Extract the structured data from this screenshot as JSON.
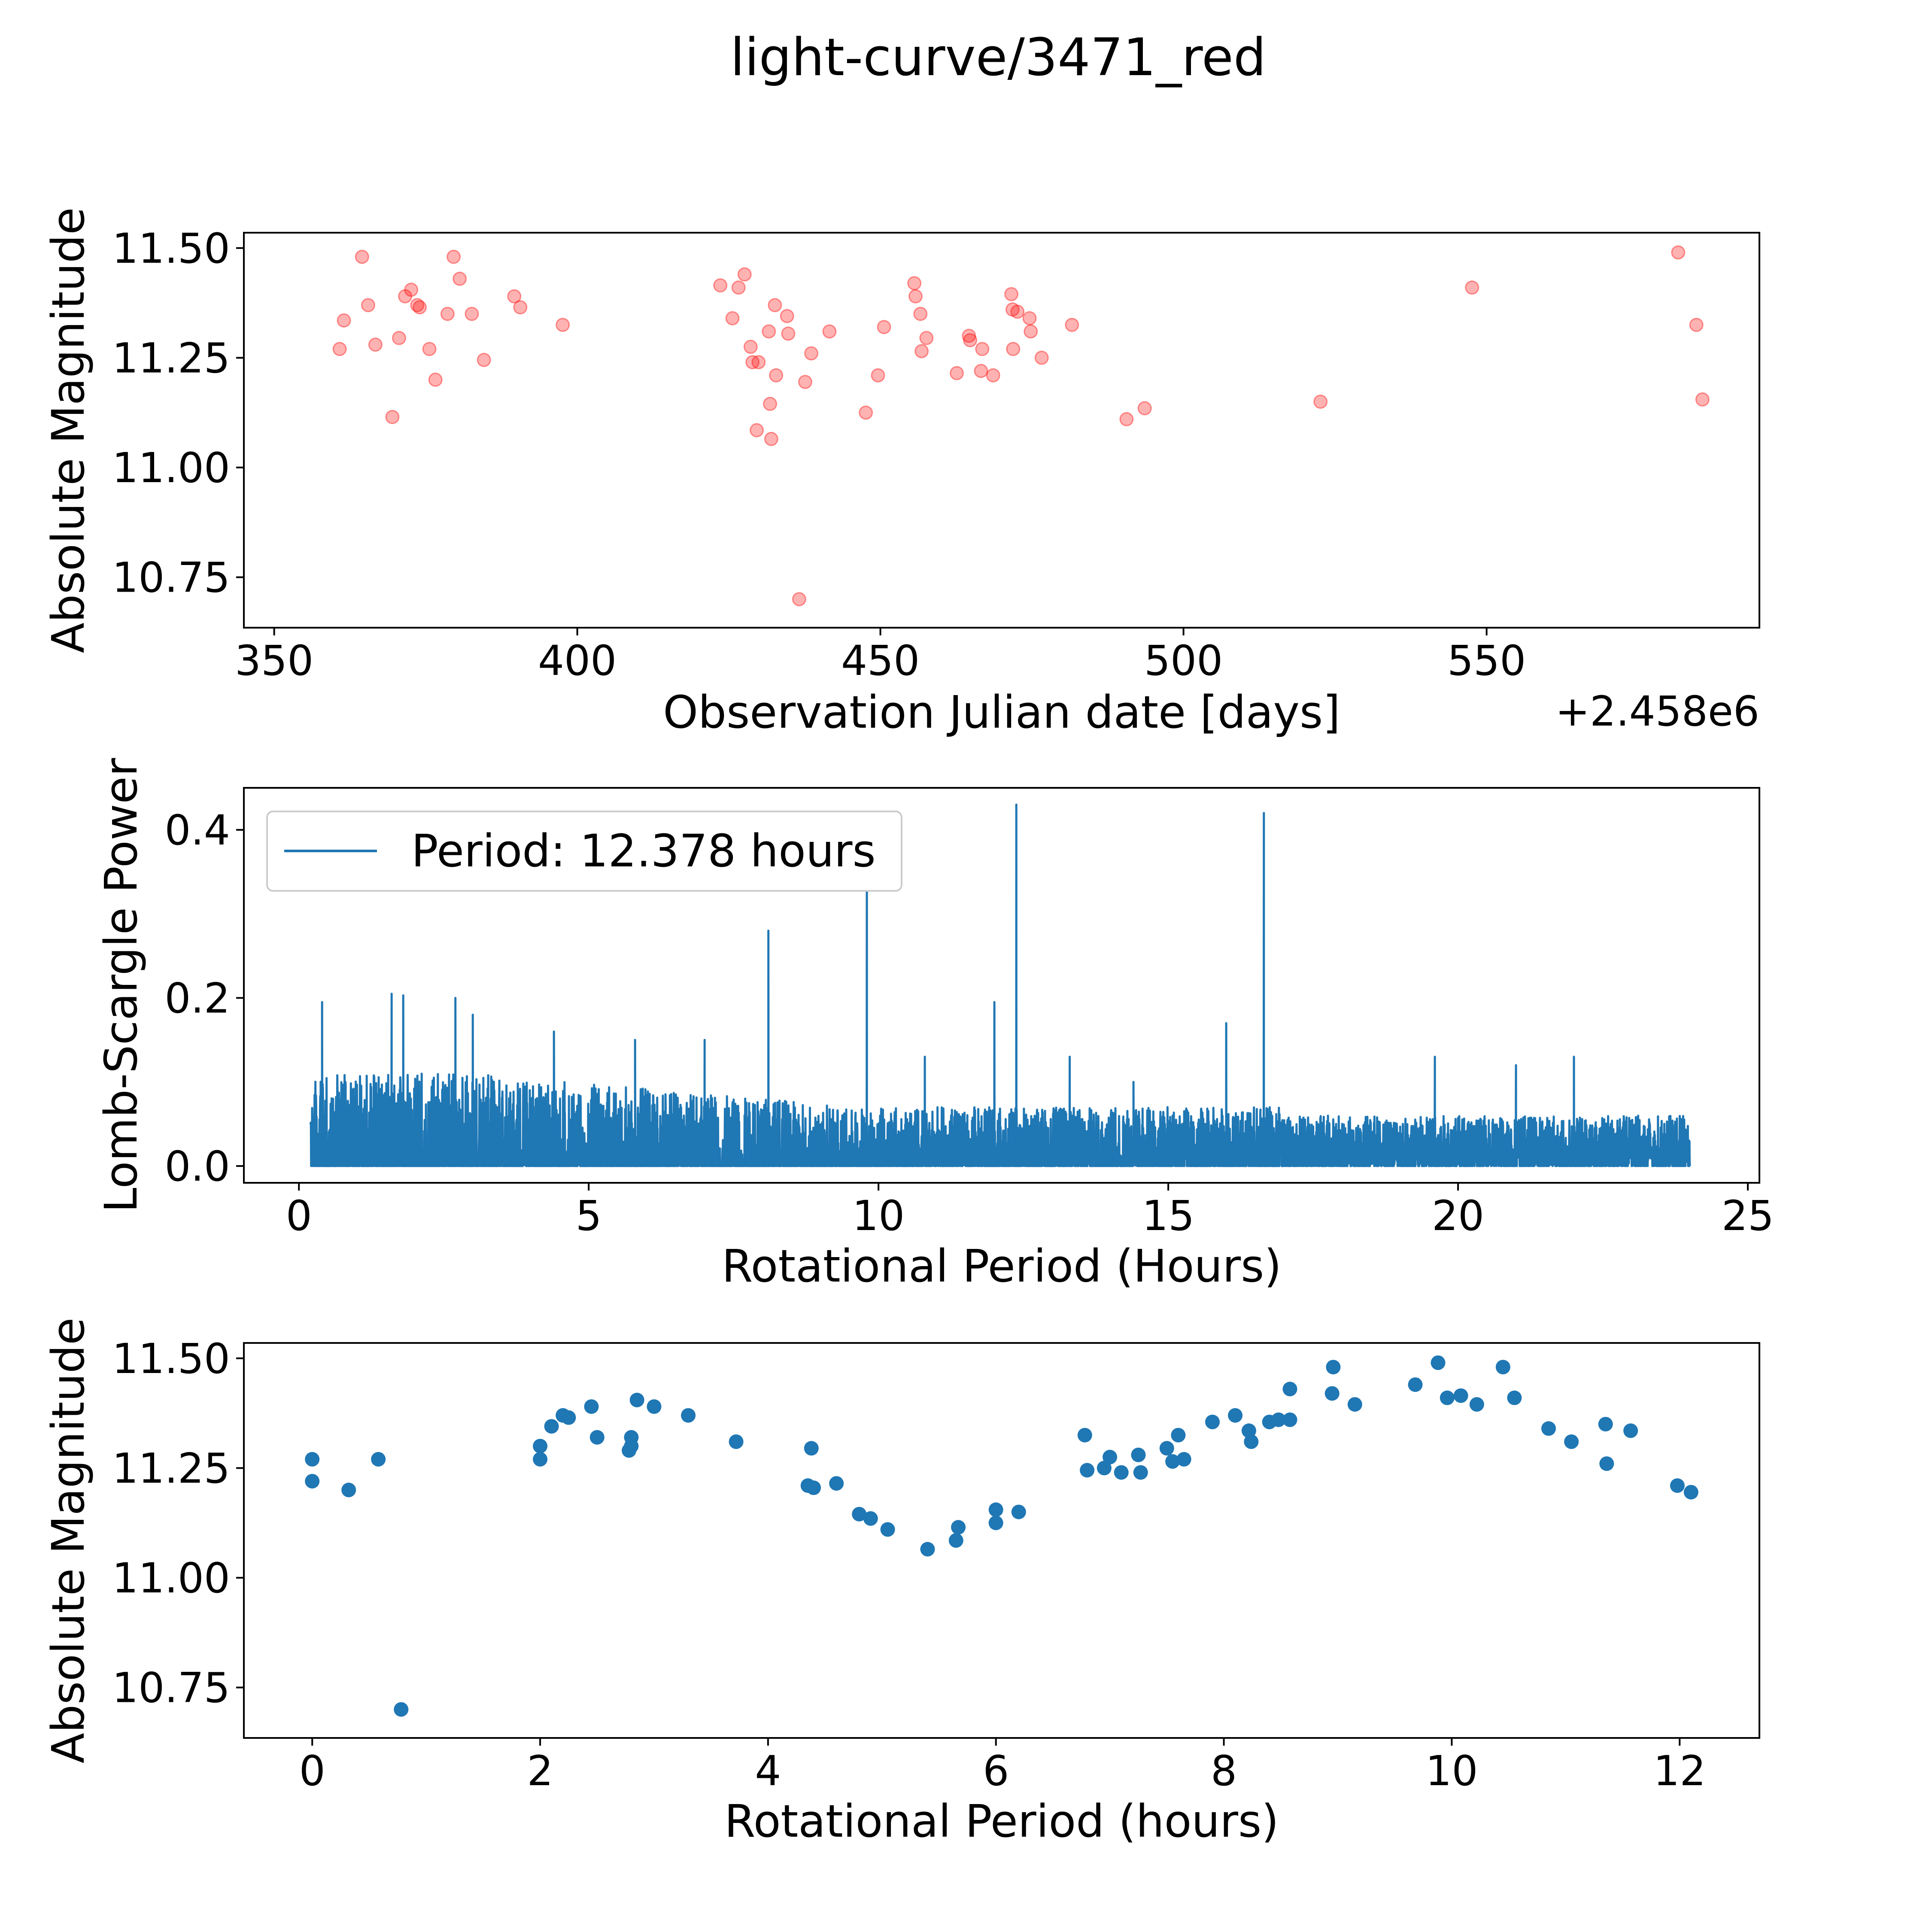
{
  "figure": {
    "title": "light-curve/3471_red"
  },
  "chart_data": [
    {
      "type": "scatter",
      "name": "raw-light-curve",
      "xlabel": "Observation Julian date [days]",
      "ylabel": "Absolute Magnitude",
      "offset_label": "+2.458e6",
      "xlim": [
        345,
        595
      ],
      "ylim": [
        10.635,
        11.535
      ],
      "x_ticks": [
        350,
        400,
        450,
        500,
        550
      ],
      "x_tick_labels": [
        "350",
        "400",
        "450",
        "500",
        "550"
      ],
      "y_ticks": [
        10.75,
        11.0,
        11.25,
        11.5
      ],
      "y_tick_labels": [
        "10.75",
        "11.00",
        "11.25",
        "11.50"
      ],
      "grid": false,
      "color": "#ff0000",
      "alpha": 0.3,
      "points": [
        [
          360.8,
          11.27
        ],
        [
          361.5,
          11.335
        ],
        [
          364.5,
          11.48
        ],
        [
          365.5,
          11.37
        ],
        [
          366.7,
          11.28
        ],
        [
          369.5,
          11.115
        ],
        [
          370.6,
          11.295
        ],
        [
          371.6,
          11.39
        ],
        [
          372.6,
          11.405
        ],
        [
          373.6,
          11.37
        ],
        [
          374.0,
          11.365
        ],
        [
          375.6,
          11.27
        ],
        [
          376.6,
          11.2
        ],
        [
          378.6,
          11.35
        ],
        [
          379.6,
          11.48
        ],
        [
          380.6,
          11.43
        ],
        [
          382.6,
          11.35
        ],
        [
          384.6,
          11.245
        ],
        [
          389.6,
          11.39
        ],
        [
          390.6,
          11.365
        ],
        [
          397.6,
          11.325
        ],
        [
          423.6,
          11.415
        ],
        [
          425.6,
          11.34
        ],
        [
          426.6,
          11.41
        ],
        [
          427.6,
          11.44
        ],
        [
          428.6,
          11.275
        ],
        [
          428.9,
          11.24
        ],
        [
          429.6,
          11.085
        ],
        [
          429.9,
          11.24
        ],
        [
          431.6,
          11.31
        ],
        [
          431.8,
          11.145
        ],
        [
          432.0,
          11.065
        ],
        [
          432.6,
          11.37
        ],
        [
          432.8,
          11.21
        ],
        [
          434.6,
          11.345
        ],
        [
          434.8,
          11.305
        ],
        [
          436.6,
          10.7
        ],
        [
          437.6,
          11.195
        ],
        [
          438.6,
          11.26
        ],
        [
          441.6,
          11.31
        ],
        [
          447.6,
          11.125
        ],
        [
          449.6,
          11.21
        ],
        [
          450.6,
          11.32
        ],
        [
          455.6,
          11.42
        ],
        [
          455.8,
          11.39
        ],
        [
          456.6,
          11.35
        ],
        [
          456.8,
          11.265
        ],
        [
          457.6,
          11.295
        ],
        [
          462.6,
          11.215
        ],
        [
          464.6,
          11.3
        ],
        [
          464.8,
          11.29
        ],
        [
          466.6,
          11.22
        ],
        [
          466.8,
          11.27
        ],
        [
          468.6,
          11.21
        ],
        [
          471.6,
          11.395
        ],
        [
          471.8,
          11.36
        ],
        [
          471.9,
          11.27
        ],
        [
          472.6,
          11.355
        ],
        [
          474.6,
          11.34
        ],
        [
          474.8,
          11.31
        ],
        [
          476.6,
          11.25
        ],
        [
          481.6,
          11.325
        ],
        [
          490.6,
          11.11
        ],
        [
          493.6,
          11.135
        ],
        [
          522.6,
          11.15
        ],
        [
          547.6,
          11.41
        ],
        [
          581.6,
          11.49
        ],
        [
          584.6,
          11.325
        ],
        [
          585.6,
          11.155
        ]
      ]
    },
    {
      "type": "line",
      "name": "lomb-scargle-periodogram",
      "xlabel": "Rotational Period (Hours)",
      "ylabel": "Lomb-Scargle Power",
      "xlim": [
        -0.95,
        25.2
      ],
      "ylim": [
        -0.02,
        0.45
      ],
      "x_ticks": [
        0,
        5,
        10,
        15,
        20,
        25
      ],
      "x_tick_labels": [
        "0",
        "5",
        "10",
        "15",
        "20",
        "25"
      ],
      "y_ticks": [
        0.0,
        0.2,
        0.4
      ],
      "y_tick_labels": [
        "0.0",
        "0.2",
        "0.4"
      ],
      "grid": false,
      "legend": {
        "location": "top-left",
        "label": "Period: 12.378 hours"
      },
      "color": "#1f77b4",
      "x_range": [
        0.2,
        24.0
      ],
      "peaks": [
        [
          0.4,
          0.195
        ],
        [
          1.6,
          0.205
        ],
        [
          1.8,
          0.203
        ],
        [
          2.7,
          0.2
        ],
        [
          3.0,
          0.18
        ],
        [
          8.1,
          0.28
        ],
        [
          9.8,
          0.37
        ],
        [
          12.378,
          0.43
        ],
        [
          16.65,
          0.42
        ],
        [
          12.0,
          0.195
        ],
        [
          16.0,
          0.17
        ],
        [
          13.3,
          0.13
        ],
        [
          19.6,
          0.13
        ],
        [
          21.0,
          0.12
        ],
        [
          22.0,
          0.13
        ],
        [
          7.0,
          0.15
        ],
        [
          10.8,
          0.13
        ],
        [
          5.8,
          0.15
        ],
        [
          4.4,
          0.16
        ],
        [
          14.4,
          0.1
        ]
      ]
    },
    {
      "type": "scatter",
      "name": "phase-folded-light-curve",
      "xlabel": "Rotational Period (hours)",
      "ylabel": "Absolute Magnitude",
      "xlim": [
        -0.6,
        12.7
      ],
      "ylim": [
        10.635,
        11.535
      ],
      "x_ticks": [
        0,
        2,
        4,
        6,
        8,
        10,
        12
      ],
      "x_tick_labels": [
        "0",
        "2",
        "4",
        "6",
        "8",
        "10",
        "12"
      ],
      "y_ticks": [
        10.75,
        11.0,
        11.25,
        11.5
      ],
      "y_tick_labels": [
        "10.75",
        "11.00",
        "11.25",
        "11.50"
      ],
      "grid": false,
      "color": "#1f77b4",
      "points": [
        [
          0.0,
          11.27
        ],
        [
          0.0,
          11.22
        ],
        [
          0.32,
          11.2
        ],
        [
          0.58,
          11.27
        ],
        [
          0.78,
          10.7
        ],
        [
          2.0,
          11.3
        ],
        [
          2.0,
          11.27
        ],
        [
          2.1,
          11.345
        ],
        [
          2.2,
          11.37
        ],
        [
          2.25,
          11.365
        ],
        [
          2.45,
          11.39
        ],
        [
          2.5,
          11.32
        ],
        [
          2.78,
          11.29
        ],
        [
          2.8,
          11.3
        ],
        [
          2.8,
          11.32
        ],
        [
          2.85,
          11.405
        ],
        [
          3.0,
          11.39
        ],
        [
          3.3,
          11.37
        ],
        [
          3.72,
          11.31
        ],
        [
          4.35,
          11.21
        ],
        [
          4.38,
          11.295
        ],
        [
          4.4,
          11.205
        ],
        [
          4.6,
          11.215
        ],
        [
          4.8,
          11.145
        ],
        [
          4.9,
          11.135
        ],
        [
          5.05,
          11.11
        ],
        [
          5.4,
          11.065
        ],
        [
          5.65,
          11.085
        ],
        [
          5.67,
          11.115
        ],
        [
          6.0,
          11.125
        ],
        [
          6.0,
          11.155
        ],
        [
          6.2,
          11.15
        ],
        [
          6.78,
          11.325
        ],
        [
          6.8,
          11.245
        ],
        [
          6.95,
          11.25
        ],
        [
          7.0,
          11.275
        ],
        [
          7.1,
          11.24
        ],
        [
          7.25,
          11.28
        ],
        [
          7.27,
          11.24
        ],
        [
          7.5,
          11.295
        ],
        [
          7.55,
          11.265
        ],
        [
          7.6,
          11.325
        ],
        [
          7.65,
          11.27
        ],
        [
          7.9,
          11.355
        ],
        [
          8.1,
          11.37
        ],
        [
          8.22,
          11.335
        ],
        [
          8.24,
          11.31
        ],
        [
          8.4,
          11.355
        ],
        [
          8.48,
          11.36
        ],
        [
          8.58,
          11.36
        ],
        [
          8.58,
          11.43
        ],
        [
          8.95,
          11.42
        ],
        [
          8.96,
          11.48
        ],
        [
          9.15,
          11.395
        ],
        [
          9.68,
          11.44
        ],
        [
          9.88,
          11.49
        ],
        [
          9.96,
          11.41
        ],
        [
          10.08,
          11.415
        ],
        [
          10.22,
          11.395
        ],
        [
          10.45,
          11.48
        ],
        [
          10.55,
          11.41
        ],
        [
          10.85,
          11.34
        ],
        [
          11.05,
          11.31
        ],
        [
          11.35,
          11.35
        ],
        [
          11.36,
          11.26
        ],
        [
          11.57,
          11.335
        ],
        [
          11.98,
          11.21
        ],
        [
          12.1,
          11.195
        ]
      ]
    }
  ]
}
